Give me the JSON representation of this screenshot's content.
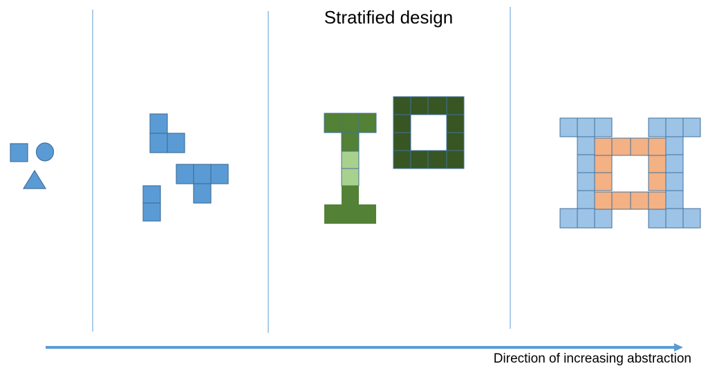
{
  "title": "Stratified design",
  "axis_label": "Direction of increasing abstraction",
  "colors": {
    "divider": "#5B9BD5",
    "primitive_fill": "#5B9BD5",
    "primitive_stroke": "#41719C",
    "green_fill": "#538135",
    "light_green_fill": "#A9D18E",
    "dark_green_fill": "#375623",
    "light_blue_fill": "#9DC3E6",
    "orange_fill": "#F4B183",
    "arrow": "#5B9BD5"
  }
}
